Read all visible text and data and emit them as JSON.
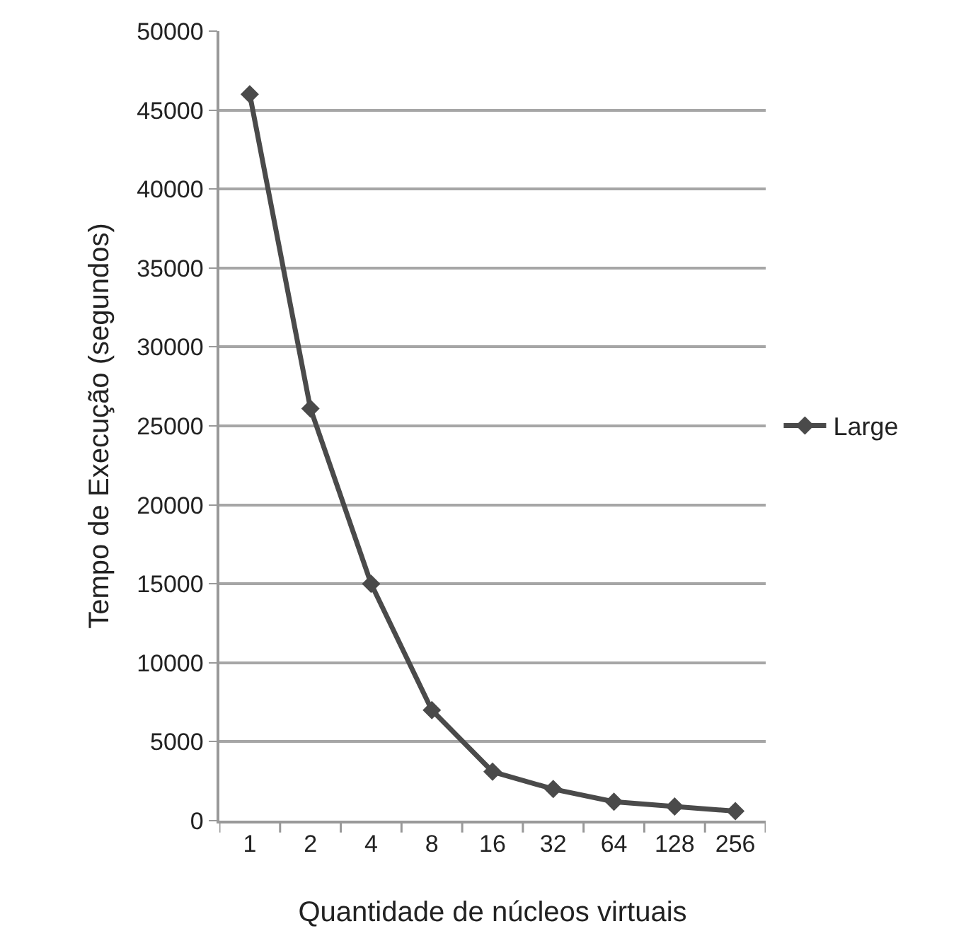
{
  "chart_data": {
    "type": "line",
    "xlabel": "Quantidade de núcleos virtuais",
    "ylabel": "Tempo de Execução (segundos)",
    "categories": [
      "1",
      "2",
      "4",
      "8",
      "16",
      "32",
      "64",
      "128",
      "256"
    ],
    "series": [
      {
        "name": "Large",
        "color": "#4a4a4a",
        "values": [
          46000,
          26100,
          15000,
          7000,
          3100,
          2000,
          1200,
          900,
          600
        ]
      }
    ],
    "ylim": [
      0,
      50000
    ],
    "yticks": [
      0,
      5000,
      10000,
      15000,
      20000,
      25000,
      30000,
      35000,
      40000,
      45000,
      50000
    ],
    "grid": "y",
    "legend": "right",
    "marker": "diamond",
    "line_style": "solid"
  }
}
